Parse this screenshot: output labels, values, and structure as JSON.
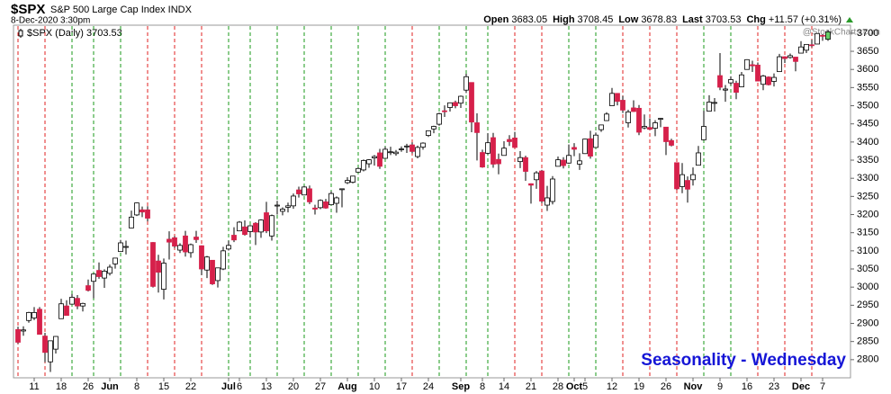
{
  "header": {
    "symbol": "$SPX",
    "name": "S&P 500 Large Cap Index INDX",
    "date": "8-Dec-2020 3:30pm",
    "watermark": "@StockCharts.com",
    "quote": [
      {
        "label": "Open",
        "value": "3683.05"
      },
      {
        "label": "High",
        "value": "3708.45"
      },
      {
        "label": "Low",
        "value": "3678.83"
      },
      {
        "label": "Last",
        "value": "3703.53"
      },
      {
        "label": "Chg",
        "value": "+11.57 (+0.31%)"
      }
    ]
  },
  "chart_data": {
    "type": "candlestick",
    "legend": "$SPX (Daily) 3703.53",
    "annotation": "Seasonality - Wednesday",
    "up_color": "#ffffff",
    "down_color": "#d6204a",
    "highlight_color": "#66cc66",
    "line_up_color": "#1a9a1a",
    "line_down_color": "#e02020",
    "ylim": [
      2750,
      3722
    ],
    "yticks": [
      2800,
      2850,
      2900,
      2950,
      3000,
      3050,
      3100,
      3150,
      3200,
      3250,
      3300,
      3350,
      3400,
      3450,
      3500,
      3550,
      3600,
      3650,
      3700
    ],
    "categories": [
      null,
      null,
      null,
      "11",
      null,
      null,
      null,
      null,
      "18",
      null,
      null,
      null,
      null,
      "26",
      null,
      null,
      null,
      "Jun",
      null,
      null,
      null,
      null,
      "8",
      null,
      null,
      null,
      null,
      "15",
      null,
      null,
      null,
      null,
      "22",
      null,
      null,
      null,
      null,
      null,
      null,
      "Jul",
      null,
      "6",
      null,
      null,
      null,
      null,
      "13",
      null,
      null,
      null,
      null,
      "20",
      null,
      null,
      null,
      null,
      "27",
      null,
      null,
      null,
      null,
      "Aug",
      null,
      null,
      null,
      null,
      "10",
      null,
      null,
      null,
      null,
      "17",
      null,
      null,
      null,
      null,
      "24",
      null,
      null,
      null,
      null,
      null,
      "Sep",
      null,
      null,
      null,
      "8",
      null,
      null,
      null,
      "14",
      null,
      null,
      null,
      null,
      "21",
      null,
      null,
      null,
      null,
      "28",
      null,
      null,
      "Oct",
      null,
      "5",
      null,
      null,
      null,
      null,
      "12",
      null,
      null,
      null,
      null,
      "19",
      null,
      null,
      null,
      null,
      "26",
      null,
      null,
      null,
      null,
      "Nov",
      null,
      null,
      null,
      null,
      "9",
      null,
      null,
      null,
      null,
      "16",
      null,
      null,
      null,
      null,
      "23",
      null,
      null,
      null,
      null,
      "Dec",
      null,
      null,
      null,
      "7",
      null
    ],
    "open": [
      2883,
      2879,
      2908,
      2915,
      2939,
      2865,
      2794,
      2829,
      2913,
      2948,
      2953,
      2969,
      2948,
      3004,
      3016,
      3046,
      3025,
      3038,
      3064,
      3098,
      3111,
      3163,
      3199,
      3213,
      3213,
      3123,
      3072,
      2994,
      3132,
      3136,
      3102,
      3141,
      3095,
      3138,
      3114,
      3047,
      3074,
      3018,
      3050,
      3105,
      3143,
      3155,
      3166,
      3153,
      3176,
      3152,
      3205,
      3141,
      3225,
      3209,
      3220,
      3224,
      3268,
      3254,
      3271,
      3218,
      3219,
      3235,
      3227,
      3231,
      3270,
      3288,
      3289,
      3317,
      3323,
      3340,
      3356,
      3370,
      3355,
      3372,
      3368,
      3380,
      3387,
      3392,
      3360,
      3386,
      3418,
      3436,
      3449,
      3486,
      3495,
      3509,
      3507,
      3543,
      3564,
      3453,
      3371,
      3369,
      3412,
      3352,
      3363,
      3407,
      3411,
      3346,
      3357,
      3285,
      3296,
      3320,
      3226,
      3236,
      3333,
      3350,
      3342,
      3385,
      3339,
      3368,
      3409,
      3385,
      3434,
      3459,
      3500,
      3534,
      3515,
      3453,
      3494,
      3493,
      3439,
      3440,
      3438,
      3464,
      3441,
      3404,
      3343,
      3277,
      3294,
      3296,
      3336,
      3406,
      3485,
      3508,
      3583,
      3543,
      3563,
      3562,
      3552,
      3600,
      3613,
      3612,
      3559,
      3579,
      3567,
      3594,
      3635,
      3633,
      3634,
      3645,
      3653,
      3668,
      3670,
      3694,
      3683.05
    ],
    "high": [
      2891,
      2892,
      2932,
      2945,
      2945,
      2874,
      2852,
      2865,
      2968,
      2964,
      2981,
      2978,
      2957,
      3021,
      3036,
      3068,
      3049,
      3062,
      3081,
      3130,
      3128,
      3211,
      3233,
      3222,
      3223,
      3124,
      3089,
      3079,
      3154,
      3141,
      3121,
      3155,
      3120,
      3155,
      3115,
      3086,
      3074,
      3053,
      3111,
      3128,
      3165,
      3182,
      3184,
      3171,
      3179,
      3187,
      3235,
      3200,
      3238,
      3220,
      3233,
      3258,
      3277,
      3279,
      3280,
      3227,
      3242,
      3243,
      3264,
      3250,
      3272,
      3303,
      3306,
      3330,
      3352,
      3353,
      3364,
      3381,
      3387,
      3387,
      3378,
      3388,
      3395,
      3399,
      3390,
      3399,
      3432,
      3445,
      3481,
      3501,
      3509,
      3514,
      3528,
      3588,
      3564,
      3479,
      3379,
      3424,
      3425,
      3368,
      3402,
      3419,
      3428,
      3375,
      3362,
      3286,
      3320,
      3323,
      3279,
      3306,
      3360,
      3358,
      3393,
      3397,
      3369,
      3409,
      3431,
      3426,
      3447,
      3482,
      3549,
      3534,
      3527,
      3489,
      3515,
      3502,
      3476,
      3465,
      3460,
      3466,
      3441,
      3409,
      3344,
      3342,
      3305,
      3330,
      3389,
      3486,
      3529,
      3521,
      3645,
      3557,
      3581,
      3569,
      3593,
      3628,
      3624,
      3619,
      3585,
      3581,
      3589,
      3643,
      3636,
      3644,
      3634,
      3678,
      3670,
      3682,
      3699,
      3697,
      3708.45
    ],
    "low": [
      2844,
      2866,
      2902,
      2909,
      2869,
      2793,
      2766,
      2817,
      2913,
      2922,
      2953,
      2939,
      2933,
      2988,
      2969,
      3023,
      2998,
      3032,
      3051,
      3098,
      3090,
      3163,
      3196,
      3193,
      3181,
      2999,
      2985,
      2966,
      3076,
      3108,
      3094,
      3084,
      3081,
      3122,
      3033,
      3025,
      3006,
      2999,
      3047,
      3101,
      3124,
      3155,
      3142,
      3137,
      3116,
      3136,
      3149,
      3128,
      3200,
      3198,
      3206,
      3216,
      3247,
      3253,
      3229,
      3200,
      3215,
      3216,
      3227,
      3205,
      3220,
      3284,
      3286,
      3317,
      3319,
      3329,
      3335,
      3326,
      3355,
      3364,
      3362,
      3373,
      3370,
      3369,
      3355,
      3379,
      3414,
      3424,
      3445,
      3469,
      3484,
      3493,
      3494,
      3535,
      3427,
      3349,
      3329,
      3366,
      3329,
      3311,
      3363,
      3389,
      3384,
      3328,
      3293,
      3230,
      3271,
      3232,
      3210,
      3228,
      3333,
      3327,
      3340,
      3361,
      3323,
      3367,
      3354,
      3385,
      3428,
      3458,
      3500,
      3501,
      3480,
      3440,
      3483,
      3419,
      3435,
      3433,
      3416,
      3441,
      3364,
      3388,
      3268,
      3259,
      3233,
      3280,
      3336,
      3405,
      3485,
      3484,
      3543,
      3511,
      3557,
      3518,
      3552,
      3600,
      3593,
      3567,
      3543,
      3556,
      3553,
      3594,
      3618,
      3630,
      3595,
      3645,
      3645,
      3661,
      3670,
      3679,
      3678.83
    ],
    "close": [
      2848,
      2882,
      2930,
      2930,
      2870,
      2820,
      2852,
      2864,
      2954,
      2922,
      2972,
      2948,
      2955,
      2991,
      3036,
      3029,
      3044,
      3055,
      3080,
      3122,
      3112,
      3193,
      3232,
      3207,
      3190,
      3002,
      3041,
      3066,
      3124,
      3113,
      3115,
      3097,
      3117,
      3131,
      3050,
      3083,
      3009,
      3053,
      3100,
      3115,
      3130,
      3179,
      3145,
      3169,
      3152,
      3185,
      3155,
      3197,
      3226,
      3215,
      3224,
      3251,
      3257,
      3276,
      3235,
      3215,
      3239,
      3218,
      3258,
      3246,
      3271,
      3294,
      3306,
      3327,
      3349,
      3351,
      3360,
      3333,
      3380,
      3373,
      3372,
      3381,
      3389,
      3374,
      3385,
      3397,
      3431,
      3443,
      3478,
      3484,
      3508,
      3500,
      3526,
      3580,
      3455,
      3426,
      3331,
      3398,
      3339,
      3340,
      3383,
      3401,
      3385,
      3357,
      3319,
      3281,
      3315,
      3237,
      3246,
      3298,
      3351,
      3335,
      3363,
      3380,
      3348,
      3408,
      3361,
      3419,
      3447,
      3477,
      3534,
      3512,
      3488,
      3483,
      3484,
      3427,
      3443,
      3435,
      3453,
      3465,
      3401,
      3391,
      3271,
      3310,
      3270,
      3310,
      3370,
      3443,
      3510,
      3509,
      3551,
      3546,
      3572,
      3537,
      3585,
      3627,
      3610,
      3568,
      3582,
      3558,
      3578,
      3635,
      3630,
      3638,
      3622,
      3662,
      3669,
      3666,
      3699,
      3692,
      3703.53
    ],
    "wednesday_lines": [
      0,
      5,
      10,
      14,
      19,
      24,
      29,
      34,
      39,
      43,
      48,
      53,
      58,
      63,
      68,
      73,
      78,
      83,
      87,
      92,
      97,
      102,
      107,
      112,
      117,
      122,
      127,
      132,
      137,
      142,
      147
    ]
  }
}
